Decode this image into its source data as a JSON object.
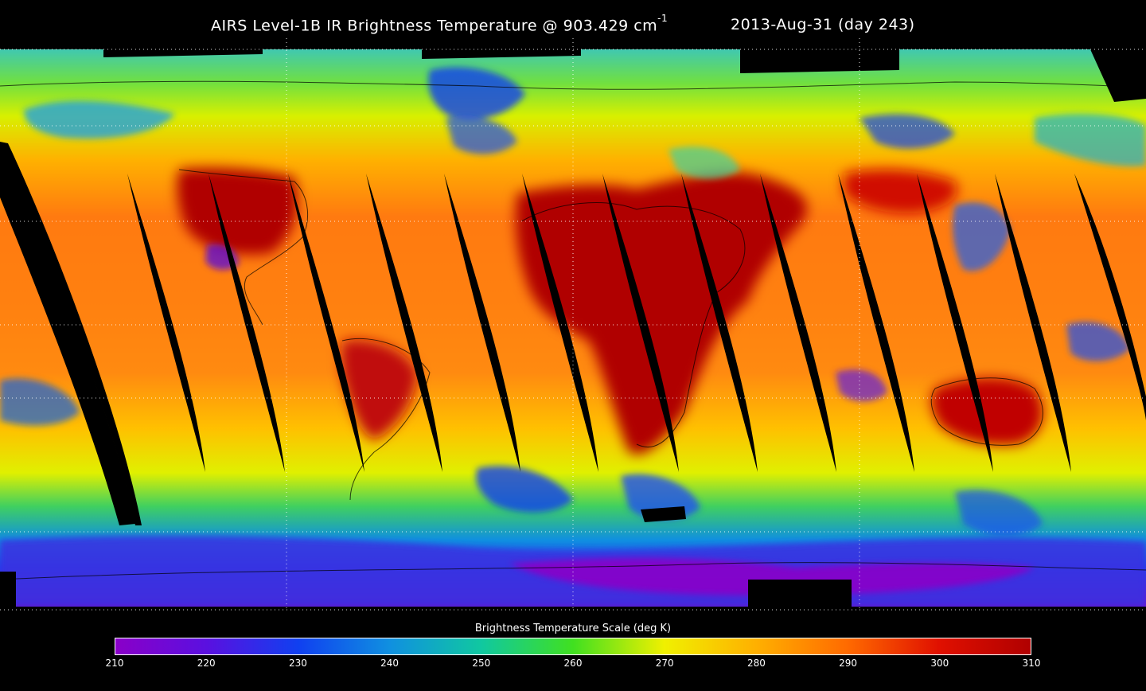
{
  "title": {
    "main_prefix": "AIRS Level-1B IR Brightness Temperature @ 903.429 cm",
    "main_sup": "-1",
    "date": "2013-Aug-31 (day 243)"
  },
  "scale": {
    "title": "Brightness Temperature Scale (deg K)",
    "ticks": [
      "210",
      "220",
      "230",
      "240",
      "250",
      "260",
      "270",
      "280",
      "290",
      "300",
      "310"
    ],
    "range": [
      210,
      310
    ],
    "colors": [
      "#8a00c8",
      "#5a10e0",
      "#1040f0",
      "#1090e0",
      "#10c8a0",
      "#40e020",
      "#f0f000",
      "#ffb000",
      "#ff6a00",
      "#e01000",
      "#b00000"
    ]
  }
}
